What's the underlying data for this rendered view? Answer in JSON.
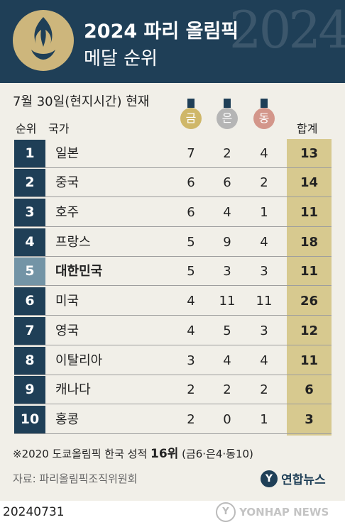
{
  "header": {
    "title": "2024 파리 올림픽",
    "subtitle": "메달 순위",
    "deco": "2024"
  },
  "date_label": "7월 30일(현지시간) 현재",
  "columns": {
    "rank": "순위",
    "country": "국가",
    "total": "합계"
  },
  "medals": {
    "gold": {
      "label": "금",
      "color": "#cfb769"
    },
    "silver": {
      "label": "은",
      "color": "#b5b5b5"
    },
    "bronze": {
      "label": "동",
      "color": "#d3968a"
    }
  },
  "colors": {
    "navy": "#1f3f57",
    "korea_rank": "#7394a6",
    "total_band": "#d7c98f"
  },
  "rows": [
    {
      "rank": "1",
      "country": "일본",
      "gold": "7",
      "silver": "2",
      "bronze": "4",
      "total": "13"
    },
    {
      "rank": "2",
      "country": "중국",
      "gold": "6",
      "silver": "6",
      "bronze": "2",
      "total": "14"
    },
    {
      "rank": "3",
      "country": "호주",
      "gold": "6",
      "silver": "4",
      "bronze": "1",
      "total": "11"
    },
    {
      "rank": "4",
      "country": "프랑스",
      "gold": "5",
      "silver": "9",
      "bronze": "4",
      "total": "18"
    },
    {
      "rank": "5",
      "country": "대한민국",
      "gold": "5",
      "silver": "3",
      "bronze": "3",
      "total": "11",
      "highlight": true
    },
    {
      "rank": "6",
      "country": "미국",
      "gold": "4",
      "silver": "11",
      "bronze": "11",
      "total": "26"
    },
    {
      "rank": "7",
      "country": "영국",
      "gold": "4",
      "silver": "5",
      "bronze": "3",
      "total": "12"
    },
    {
      "rank": "8",
      "country": "이탈리아",
      "gold": "3",
      "silver": "4",
      "bronze": "4",
      "total": "11"
    },
    {
      "rank": "9",
      "country": "캐나다",
      "gold": "2",
      "silver": "2",
      "bronze": "2",
      "total": "6"
    },
    {
      "rank": "10",
      "country": "홍콩",
      "gold": "2",
      "silver": "0",
      "bronze": "1",
      "total": "3"
    }
  ],
  "note": {
    "prefix": "※2020 도쿄올림픽 한국 성적 ",
    "rank": "16위",
    "suffix": " (금6·은4·동10)"
  },
  "source": "자료: 파리올림픽조직위원회",
  "brand": {
    "icon": "Y",
    "name": "연합뉴스"
  },
  "date_stamp": "20240731",
  "watermark": {
    "icon": "Y",
    "name": "YONHAP NEWS"
  }
}
